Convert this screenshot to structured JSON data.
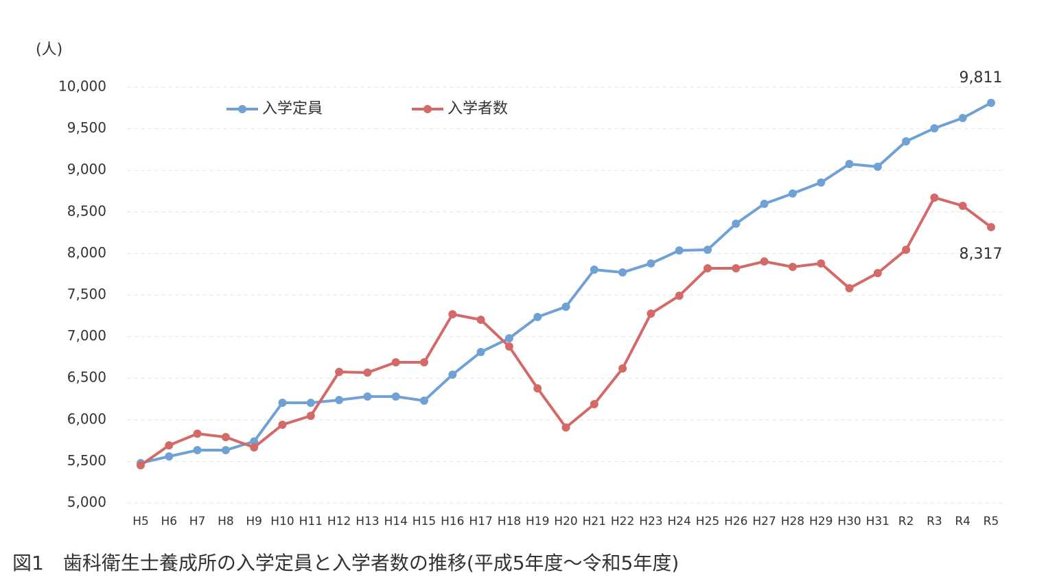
{
  "chart_data": {
    "type": "line",
    "title": "図1　歯科衛生士養成所の入学定員と入学者数の推移(平成5年度～令和5年度)",
    "y_label": "(人)",
    "categories": [
      "H5",
      "H6",
      "H7",
      "H8",
      "H9",
      "H10",
      "H11",
      "H12",
      "H13",
      "H14",
      "H15",
      "H16",
      "H17",
      "H18",
      "H19",
      "H20",
      "H21",
      "H22",
      "H23",
      "H24",
      "H25",
      "H26",
      "H27",
      "H28",
      "H29",
      "H30",
      "H31",
      "R2",
      "R3",
      "R4",
      "R5"
    ],
    "series": [
      {
        "name": "入学定員",
        "color": "#6fa1d4",
        "values": [
          5480,
          5560,
          5635,
          5635,
          5740,
          6205,
          6205,
          6238,
          6280,
          6280,
          6230,
          6543,
          6815,
          6980,
          7236,
          7360,
          7805,
          7772,
          7880,
          8036,
          8045,
          8358,
          8597,
          8721,
          8853,
          9076,
          9043,
          9348,
          9505,
          9629,
          9811
        ],
        "value_labels": [
          null,
          null,
          null,
          null,
          null,
          null,
          null,
          null,
          null,
          null,
          null,
          null,
          null,
          null,
          null,
          null,
          null,
          null,
          null,
          null,
          null,
          null,
          null,
          null,
          null,
          null,
          null,
          null,
          null,
          null,
          "9,811"
        ]
      },
      {
        "name": "入学者数",
        "color": "#d46a68",
        "values": [
          5454,
          5693,
          5833,
          5792,
          5668,
          5941,
          6048,
          6576,
          6568,
          6691,
          6691,
          7269,
          7203,
          6881,
          6378,
          5908,
          6188,
          6617,
          7277,
          7492,
          7822,
          7822,
          7904,
          7838,
          7880,
          7582,
          7764,
          8045,
          8672,
          8573,
          8317
        ],
        "value_labels": [
          null,
          null,
          null,
          null,
          null,
          null,
          null,
          null,
          null,
          null,
          null,
          null,
          null,
          null,
          null,
          null,
          null,
          null,
          null,
          null,
          null,
          null,
          null,
          null,
          null,
          null,
          null,
          null,
          null,
          null,
          "8,317"
        ]
      }
    ],
    "ylim": [
      5000,
      10000
    ],
    "yticks": [
      {
        "value": 5000,
        "label": "5,000"
      },
      {
        "value": 5500,
        "label": "5,500"
      },
      {
        "value": 6000,
        "label": "6,000"
      },
      {
        "value": 6500,
        "label": "6,500"
      },
      {
        "value": 7000,
        "label": "7,000"
      },
      {
        "value": 7500,
        "label": "7,500"
      },
      {
        "value": 8000,
        "label": "8,000"
      },
      {
        "value": 8500,
        "label": "8,500"
      },
      {
        "value": 9000,
        "label": "9,000"
      },
      {
        "value": 9500,
        "label": "9,500"
      },
      {
        "value": 10000,
        "label": "10,000"
      }
    ],
    "grid": true,
    "legend": "top-left"
  }
}
